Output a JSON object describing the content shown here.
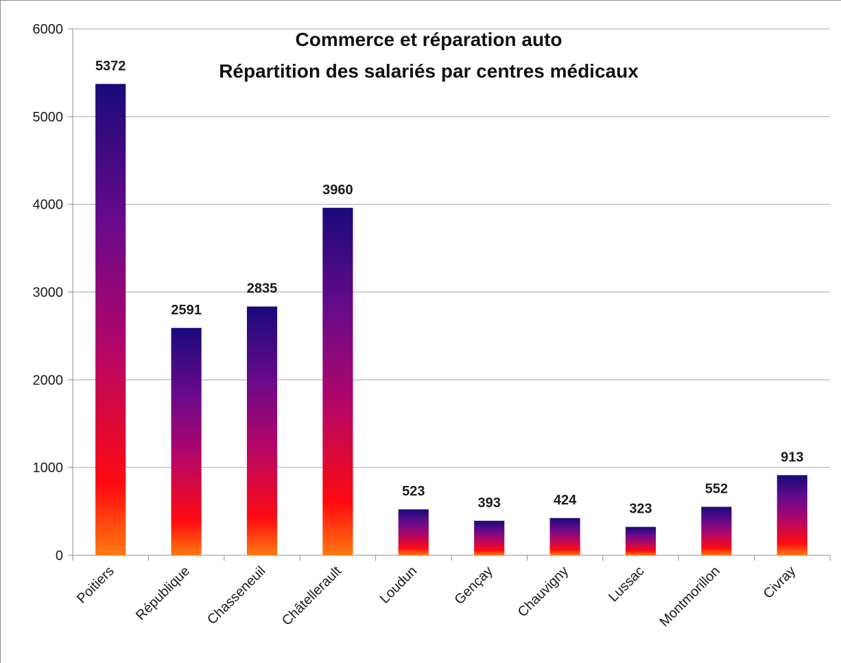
{
  "chart_data": {
    "type": "bar",
    "title_lines": [
      "Commerce et réparation auto",
      "Répartition des salariés par centres médicaux"
    ],
    "categories": [
      "Poitiers",
      "République",
      "Chasseneuil",
      "Châtellerault",
      "Loudun",
      "Gençay",
      "Chauvigny",
      "Lussac",
      "Montmorillon",
      "Civray"
    ],
    "values": [
      5372,
      2591,
      2835,
      3960,
      523,
      393,
      424,
      323,
      552,
      913
    ],
    "data_labels": [
      "5372",
      "2591",
      "2835",
      "3960",
      "523",
      "393",
      "424",
      "323",
      "552",
      "913"
    ],
    "ylim": [
      0,
      6000
    ],
    "yticks": [
      0,
      1000,
      2000,
      3000,
      4000,
      5000,
      6000
    ],
    "ytick_labels": [
      "0",
      "1000",
      "2000",
      "3000",
      "4000",
      "5000",
      "6000"
    ],
    "grid": true,
    "legend": "none",
    "colors": {
      "gradient_top": "#1a0a7a",
      "gradient_mid_upper": "#6a0a8a",
      "gradient_mid": "#b0066a",
      "gradient_lower": "#ff0a10",
      "gradient_bottom": "#ff7a10",
      "gridline": "#a6a6a6",
      "axis": "#8c8c8c"
    }
  }
}
